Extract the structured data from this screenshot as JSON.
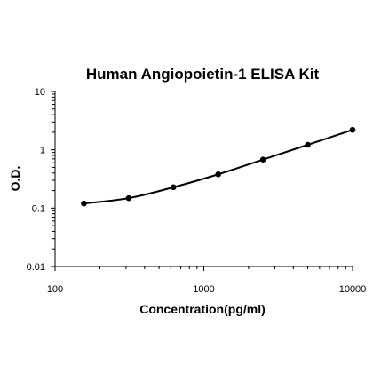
{
  "chart_data": {
    "type": "line",
    "title": "Human Angiopoietin-1 ELISA Kit",
    "xlabel": "Concentration(pg/ml)",
    "ylabel": "O.D.",
    "xscale": "log",
    "yscale": "log",
    "xlim": [
      100,
      10000
    ],
    "ylim": [
      0.01,
      10
    ],
    "x_ticks": [
      "100",
      "1000",
      "10000"
    ],
    "y_ticks": [
      "0.01",
      "0.1",
      "1",
      "10"
    ],
    "grid": false,
    "legend": "none",
    "line_color": "#000000",
    "marker_color": "#000000",
    "series": [
      {
        "x": [
          156.25,
          312.5,
          625,
          1250,
          2500,
          5000,
          10000
        ],
        "y": [
          0.12,
          0.148,
          0.228,
          0.38,
          0.68,
          1.22,
          2.2
        ]
      }
    ]
  }
}
